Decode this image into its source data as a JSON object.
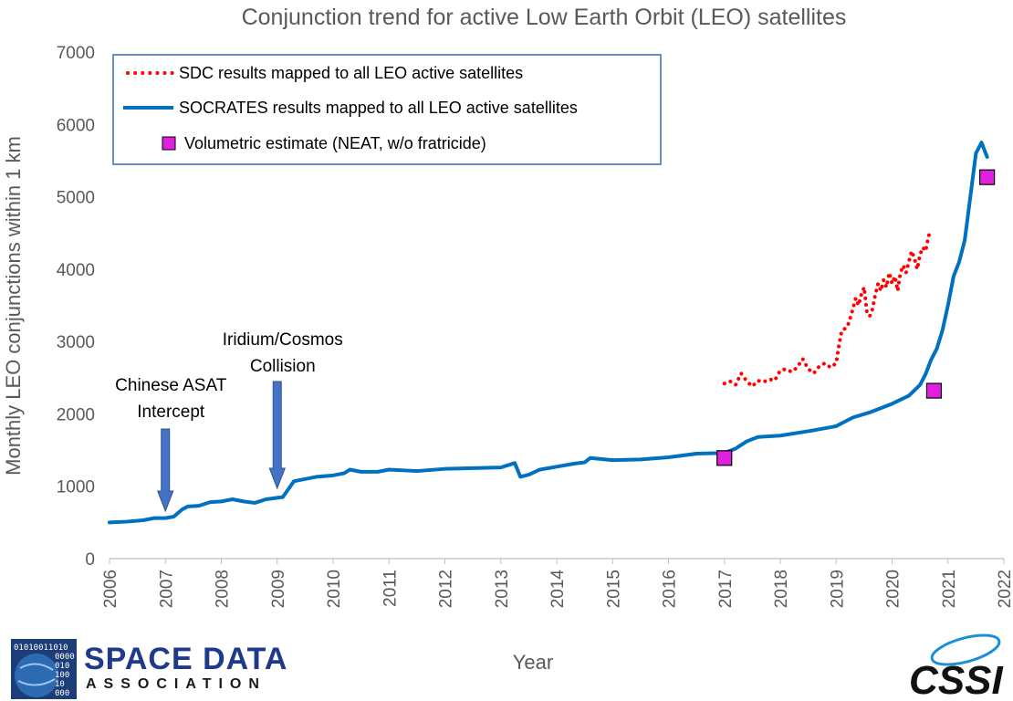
{
  "chart_data": {
    "type": "line",
    "title": "Conjunction trend for active Low Earth Orbit (LEO) satellites",
    "xlabel": "Year",
    "ylabel": "Monthly LEO conjunctions within 1 km",
    "xlim": [
      2006,
      2022
    ],
    "ylim": [
      0,
      7000
    ],
    "xticks": [
      "2006",
      "2007",
      "2008",
      "2009",
      "2010",
      "2011",
      "2012",
      "2013",
      "2014",
      "2015",
      "2016",
      "2017",
      "2018",
      "2019",
      "2020",
      "2021",
      "2022"
    ],
    "yticks": [
      "0",
      "1000",
      "2000",
      "3000",
      "4000",
      "5000",
      "6000",
      "7000"
    ],
    "series": [
      {
        "name": "SDC results mapped to all LEO active satellites",
        "style": "dotted",
        "color": "#ff0000",
        "points": [
          [
            2017.0,
            2420
          ],
          [
            2017.1,
            2450
          ],
          [
            2017.2,
            2400
          ],
          [
            2017.3,
            2560
          ],
          [
            2017.4,
            2450
          ],
          [
            2017.5,
            2380
          ],
          [
            2017.6,
            2460
          ],
          [
            2017.7,
            2440
          ],
          [
            2017.8,
            2480
          ],
          [
            2017.9,
            2460
          ],
          [
            2018.0,
            2600
          ],
          [
            2018.1,
            2620
          ],
          [
            2018.2,
            2580
          ],
          [
            2018.3,
            2640
          ],
          [
            2018.4,
            2760
          ],
          [
            2018.5,
            2620
          ],
          [
            2018.6,
            2560
          ],
          [
            2018.7,
            2660
          ],
          [
            2018.8,
            2700
          ],
          [
            2018.9,
            2640
          ],
          [
            2019.0,
            2700
          ],
          [
            2019.05,
            2950
          ],
          [
            2019.1,
            3150
          ],
          [
            2019.2,
            3200
          ],
          [
            2019.3,
            3450
          ],
          [
            2019.35,
            3600
          ],
          [
            2019.4,
            3500
          ],
          [
            2019.45,
            3650
          ],
          [
            2019.5,
            3750
          ],
          [
            2019.55,
            3400
          ],
          [
            2019.6,
            3350
          ],
          [
            2019.65,
            3450
          ],
          [
            2019.7,
            3650
          ],
          [
            2019.75,
            3800
          ],
          [
            2019.8,
            3700
          ],
          [
            2019.85,
            3850
          ],
          [
            2019.9,
            3750
          ],
          [
            2019.95,
            3950
          ],
          [
            2020.0,
            3800
          ],
          [
            2020.05,
            3900
          ],
          [
            2020.1,
            3700
          ],
          [
            2020.15,
            3950
          ],
          [
            2020.2,
            4050
          ],
          [
            2020.25,
            3950
          ],
          [
            2020.3,
            4100
          ],
          [
            2020.35,
            4250
          ],
          [
            2020.4,
            4150
          ],
          [
            2020.45,
            4000
          ],
          [
            2020.5,
            4200
          ],
          [
            2020.55,
            4300
          ],
          [
            2020.6,
            4250
          ],
          [
            2020.65,
            4450
          ],
          [
            2020.7,
            4550
          ]
        ]
      },
      {
        "name": "SOCRATES results mapped to all LEO active satellites",
        "style": "solid",
        "color": "#0070c0",
        "points": [
          [
            2006.0,
            500
          ],
          [
            2006.3,
            510
          ],
          [
            2006.6,
            530
          ],
          [
            2006.8,
            560
          ],
          [
            2007.0,
            560
          ],
          [
            2007.15,
            580
          ],
          [
            2007.3,
            680
          ],
          [
            2007.4,
            720
          ],
          [
            2007.6,
            730
          ],
          [
            2007.8,
            780
          ],
          [
            2008.0,
            790
          ],
          [
            2008.2,
            820
          ],
          [
            2008.4,
            790
          ],
          [
            2008.6,
            770
          ],
          [
            2008.8,
            820
          ],
          [
            2009.0,
            840
          ],
          [
            2009.1,
            850
          ],
          [
            2009.2,
            960
          ],
          [
            2009.3,
            1070
          ],
          [
            2009.5,
            1100
          ],
          [
            2009.7,
            1130
          ],
          [
            2010.0,
            1150
          ],
          [
            2010.2,
            1180
          ],
          [
            2010.3,
            1230
          ],
          [
            2010.5,
            1200
          ],
          [
            2010.8,
            1200
          ],
          [
            2011.0,
            1230
          ],
          [
            2011.5,
            1210
          ],
          [
            2012.0,
            1240
          ],
          [
            2012.5,
            1250
          ],
          [
            2013.0,
            1260
          ],
          [
            2013.25,
            1320
          ],
          [
            2013.35,
            1130
          ],
          [
            2013.5,
            1160
          ],
          [
            2013.7,
            1230
          ],
          [
            2014.0,
            1270
          ],
          [
            2014.3,
            1310
          ],
          [
            2014.5,
            1330
          ],
          [
            2014.6,
            1390
          ],
          [
            2015.0,
            1360
          ],
          [
            2015.5,
            1370
          ],
          [
            2016.0,
            1400
          ],
          [
            2016.5,
            1450
          ],
          [
            2017.0,
            1460
          ],
          [
            2017.2,
            1520
          ],
          [
            2017.4,
            1620
          ],
          [
            2017.6,
            1680
          ],
          [
            2018.0,
            1700
          ],
          [
            2018.5,
            1760
          ],
          [
            2019.0,
            1830
          ],
          [
            2019.3,
            1950
          ],
          [
            2019.6,
            2020
          ],
          [
            2020.0,
            2140
          ],
          [
            2020.3,
            2250
          ],
          [
            2020.5,
            2400
          ],
          [
            2020.6,
            2550
          ],
          [
            2020.7,
            2750
          ],
          [
            2020.8,
            2900
          ],
          [
            2020.9,
            3150
          ],
          [
            2021.0,
            3500
          ],
          [
            2021.1,
            3900
          ],
          [
            2021.2,
            4100
          ],
          [
            2021.3,
            4400
          ],
          [
            2021.4,
            5000
          ],
          [
            2021.5,
            5600
          ],
          [
            2021.6,
            5750
          ],
          [
            2021.7,
            5550
          ]
        ]
      },
      {
        "name": "Volumetric estimate (NEAT, w/o fratricide)",
        "style": "markers",
        "color": "#e020e0",
        "points": [
          [
            2017.0,
            1390
          ],
          [
            2020.75,
            2320
          ],
          [
            2021.7,
            5270
          ]
        ]
      }
    ],
    "annotations": [
      {
        "lines": [
          "Chinese ASAT",
          "Intercept"
        ],
        "x": 2007.0
      },
      {
        "lines": [
          "Iridium/Cosmos",
          "Collision"
        ],
        "x": 2009.0
      }
    ],
    "legend_position": "top-left"
  },
  "logos": {
    "left_name_1": "SPACE DATA",
    "left_name_2": "ASSOCIATION",
    "left_binary": [
      "01010011010",
      "0000",
      "010",
      "100",
      "10",
      "000"
    ],
    "right_name": "CSSI"
  },
  "colors": {
    "axis": "#bfbfbf",
    "arrow": "#4472c4",
    "legend_border": "#4472c4"
  }
}
